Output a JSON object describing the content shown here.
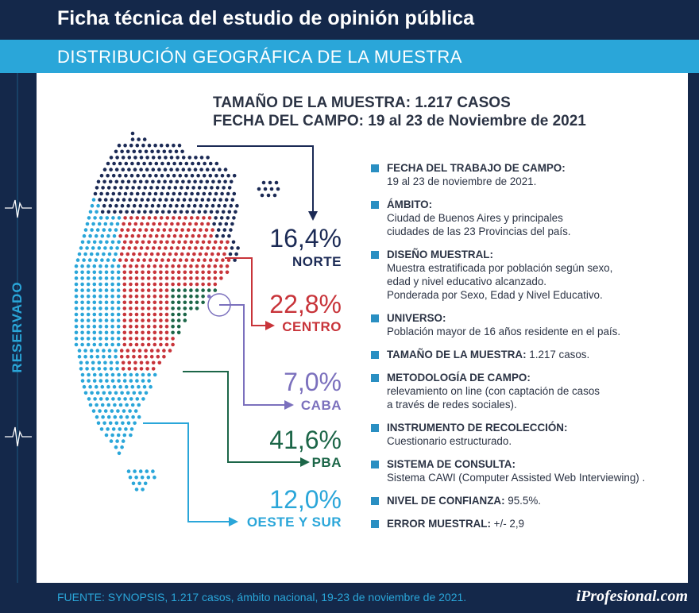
{
  "header": {
    "title": "Ficha técnica del estudio de opinión pública",
    "subtitle": "DISTRIBUCIÓN GEOGRÁFICA DE LA MUESTRA"
  },
  "side_label": "RESERVADO",
  "headline": {
    "line1": "TAMAÑO DE LA MUESTRA: 1.217 CASOS",
    "line2": "FECHA DEL CAMPO: 19 al 23 de Noviembre de 2021"
  },
  "colors": {
    "navy": "#14284a",
    "cyan": "#2aa6d9",
    "norte": "#1b2a55",
    "centro": "#c8343a",
    "caba": "#7b70bd",
    "pba": "#1c6648",
    "oeste_sur": "#2aa6d9"
  },
  "regions": [
    {
      "id": "norte",
      "pct": "16,4%",
      "label": "NORTE"
    },
    {
      "id": "centro",
      "pct": "22,8%",
      "label": "CENTRO"
    },
    {
      "id": "caba",
      "pct": "7,0%",
      "label": "CABA"
    },
    {
      "id": "pba",
      "pct": "41,6%",
      "label": "PBA"
    },
    {
      "id": "oeste_sur",
      "pct": "12,0%",
      "label": "OESTE Y SUR"
    }
  ],
  "facts": [
    {
      "key": "FECHA DEL TRABAJO DE CAMPO:",
      "value": "19 al 23 de noviembre de 2021."
    },
    {
      "key": "ÁMBITO:",
      "value": "Ciudad de Buenos Aires y principales\nciudades de las 23 Provincias del país."
    },
    {
      "key": "DISEÑO MUESTRAL:",
      "value": "Muestra estratificada por población según sexo,\nedad y nivel educativo alcanzado.\nPonderada por Sexo, Edad y Nivel Educativo."
    },
    {
      "key": "UNIVERSO:",
      "value": "Población mayor de 16 años residente en el país."
    },
    {
      "key": "TAMAÑO DE LA MUESTRA:",
      "value": " 1.217 casos.",
      "inline": true
    },
    {
      "key": "METODOLOGÍA DE CAMPO:",
      "value": "relevamiento on line (con captación de casos\na través de redes sociales)."
    },
    {
      "key": "INSTRUMENTO DE RECOLECCIÓN:",
      "value": "Cuestionario estructurado."
    },
    {
      "key": "SISTEMA DE CONSULTA:",
      "value": "Sistema CAWI (Computer Assisted Web Interviewing) ."
    },
    {
      "key": "NIVEL DE CONFIANZA:",
      "value": " 95.5%.",
      "inline": true
    },
    {
      "key": "ERROR MUESTRAL:",
      "value": " +/- 2,9",
      "inline": true
    }
  ],
  "footer": {
    "source": "FUENTE: SYNOPSIS, 1.217 casos, ámbito nacional, 19-23 de noviembre de 2021.",
    "brand": "iProfesional.com"
  }
}
